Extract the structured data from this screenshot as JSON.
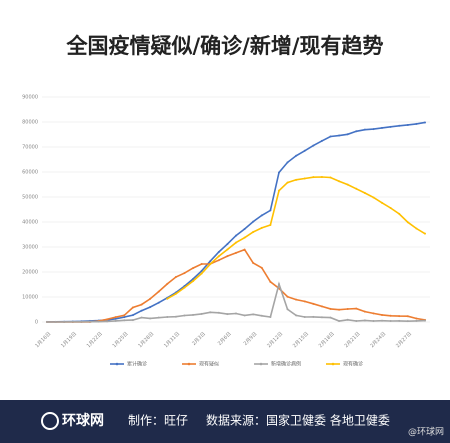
{
  "chart_data": {
    "type": "line",
    "title": "全国疫情疑似/确诊/新增/现有趋势",
    "categories": [
      "1月16日",
      null,
      null,
      "1月19日",
      null,
      null,
      "1月22日",
      null,
      null,
      "1月25日",
      null,
      null,
      "1月28日",
      null,
      null,
      "1月31日",
      null,
      null,
      "2月3日",
      null,
      null,
      "2月6日",
      null,
      null,
      "2月9日",
      null,
      null,
      "2月12日",
      null,
      null,
      "2月15日",
      null,
      null,
      "2月18日",
      null,
      null,
      "2月21日",
      null,
      null,
      "2月24日",
      null,
      null,
      "2月27日",
      null,
      null
    ],
    "series": [
      {
        "name": "累计确诊",
        "color": "#4472c4",
        "values": [
          45,
          62,
          121,
          198,
          291,
          440,
          571,
          830,
          1287,
          1975,
          2744,
          4515,
          5974,
          7711,
          9692,
          11791,
          14380,
          17205,
          20438,
          24324,
          28018,
          31161,
          34546,
          37198,
          40171,
          42638,
          44653,
          59804,
          63851,
          66492,
          68500,
          70548,
          72436,
          74185,
          74576,
          75077,
          76288,
          76936,
          77150,
          77658,
          78064,
          78497,
          78824,
          79251,
          79824
        ]
      },
      {
        "name": "现有疑似",
        "color": "#ed7d31",
        "values": [
          0,
          0,
          0,
          0,
          54,
          37,
          393,
          1072,
          1965,
          2684,
          5794,
          6973,
          9239,
          12167,
          15238,
          17988,
          19544,
          21558,
          23214,
          23260,
          24702,
          26359,
          27657,
          28942,
          23589,
          21675,
          16067,
          13435,
          10109,
          8969,
          8228,
          7264,
          6242,
          5248,
          4922,
          5206,
          5365,
          4148,
          3434,
          2824,
          2491,
          2358,
          2308,
          1418,
          851
        ]
      },
      {
        "name": "新增确诊病例",
        "color": "#a5a5a5",
        "values": [
          4,
          17,
          59,
          77,
          77,
          149,
          131,
          259,
          444,
          688,
          769,
          1771,
          1459,
          1737,
          1982,
          2102,
          2590,
          2829,
          3235,
          3887,
          3694,
          3143,
          3385,
          2652,
          3062,
          2478,
          2015,
          15152,
          5090,
          2641,
          2009,
          2048,
          1886,
          1749,
          394,
          889,
          397,
          648,
          409,
          508,
          406,
          433,
          327,
          427,
          573
        ]
      },
      {
        "name": "现有确诊",
        "color": "#ffc000",
        "values": [
          null,
          null,
          null,
          null,
          null,
          null,
          null,
          null,
          null,
          null,
          null,
          null,
          null,
          null,
          9308,
          11289,
          13748,
          16369,
          19381,
          23131,
          26302,
          28985,
          31774,
          33738,
          35982,
          37626,
          38800,
          52526,
          55748,
          56873,
          57416,
          57934,
          58016,
          57805,
          56303,
          54965,
          53284,
          51606,
          49824,
          47672,
          45604,
          43258,
          39919,
          37414,
          35329
        ]
      }
    ],
    "ylim": [
      0,
      90000
    ],
    "yticks": [
      0,
      10000,
      20000,
      30000,
      40000,
      50000,
      60000,
      70000,
      80000,
      90000
    ],
    "grid": true
  },
  "footer": {
    "logo": "环球网",
    "maker": "制作：旺仔",
    "source": "数据来源：国家卫健委 各地卫健委",
    "watermark": "@环球网"
  }
}
